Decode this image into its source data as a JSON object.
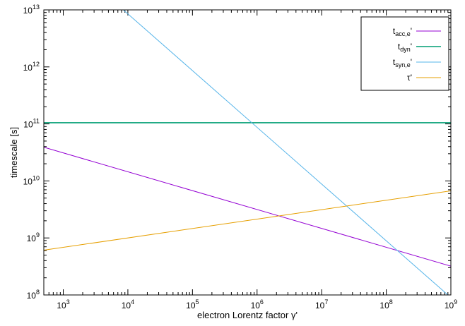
{
  "chart_data": {
    "type": "line",
    "xlabel": "electron Lorentz factor γ'",
    "ylabel": "timescale [s]",
    "x_scale": "log",
    "y_scale": "log",
    "xlim": [
      500,
      1000000000
    ],
    "ylim": [
      100000000,
      10000000000000
    ],
    "grid": false,
    "legend_position": "top-right",
    "x_ticks": [
      {
        "value": 1000,
        "base": "10",
        "exp": "3"
      },
      {
        "value": 10000,
        "base": "10",
        "exp": "4"
      },
      {
        "value": 100000,
        "base": "10",
        "exp": "5"
      },
      {
        "value": 1000000,
        "base": "10",
        "exp": "6"
      },
      {
        "value": 10000000,
        "base": "10",
        "exp": "7"
      },
      {
        "value": 100000000,
        "base": "10",
        "exp": "8"
      },
      {
        "value": 1000000000,
        "base": "10",
        "exp": "9"
      }
    ],
    "y_ticks": [
      {
        "value": 100000000,
        "base": "10",
        "exp": "8"
      },
      {
        "value": 1000000000,
        "base": "10",
        "exp": "9"
      },
      {
        "value": 10000000000,
        "base": "10",
        "exp": "10"
      },
      {
        "value": 100000000000,
        "base": "10",
        "exp": "11"
      },
      {
        "value": 1000000000000,
        "base": "10",
        "exp": "12"
      },
      {
        "value": 10000000000000,
        "base": "10",
        "exp": "13"
      }
    ],
    "series": [
      {
        "name_main": "t",
        "name_sub": "acc,e",
        "name_suffix": "'",
        "color": "#9400d3",
        "x": [
          500,
          1000000000
        ],
        "y": [
          39000000000,
          320000000
        ]
      },
      {
        "name_main": "t",
        "name_sub": "dyn",
        "name_suffix": "'",
        "color": "#009e73",
        "x": [
          500,
          1000000000
        ],
        "y": [
          105000000000,
          105000000000
        ]
      },
      {
        "name_main": "t",
        "name_sub": "syn,e",
        "name_suffix": "'",
        "color": "#56b4e9",
        "x": [
          8500,
          900000000
        ],
        "y": [
          10000000000000,
          100000000
        ]
      },
      {
        "name_main": "τ",
        "name_sub": "",
        "name_suffix": "'",
        "color": "#e69f00",
        "x": [
          500,
          1000000000
        ],
        "y": [
          610000000,
          6700000000
        ]
      }
    ]
  }
}
